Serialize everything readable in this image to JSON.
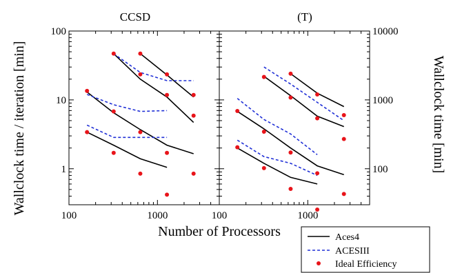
{
  "chart_data": [
    {
      "type": "line",
      "title": "CCSD",
      "xlabel": "Number of Processors",
      "ylabel": "Wallclock time / iteration [min]",
      "x_scale": "log",
      "y_scale": "log",
      "xlim": [
        100,
        5000
      ],
      "ylim": [
        0.3,
        100
      ],
      "x_ticks": [
        100,
        1000
      ],
      "x_tick_labels": [
        "100",
        "1000"
      ],
      "y_ticks": [
        1,
        10,
        100
      ],
      "y_tick_labels": [
        "1",
        "10",
        "100"
      ],
      "series": [
        {
          "name": "Aces4",
          "style": "solid",
          "color": "#000000",
          "x": [
            160,
            320,
            640,
            1280
          ],
          "y": [
            3.4,
            2.2,
            1.4,
            1.05
          ]
        },
        {
          "name": "Aces4",
          "style": "solid",
          "color": "#000000",
          "x": [
            160,
            320,
            640,
            1280,
            2560
          ],
          "y": [
            13,
            6.5,
            3.7,
            2.2,
            1.65
          ]
        },
        {
          "name": "Aces4",
          "style": "solid",
          "color": "#000000",
          "x": [
            320,
            640,
            1280,
            2560
          ],
          "y": [
            47,
            20,
            11,
            4.7
          ]
        },
        {
          "name": "Aces4",
          "style": "solid",
          "color": "#000000",
          "x": [
            640,
            1280,
            2560
          ],
          "y": [
            47,
            23,
            11
          ]
        },
        {
          "name": "ACESIII",
          "style": "dashed",
          "color": "#1f2fd6",
          "x": [
            160,
            320,
            640,
            1280
          ],
          "y": [
            4.3,
            2.85,
            2.85,
            2.85
          ]
        },
        {
          "name": "ACESIII",
          "style": "dashed",
          "color": "#1f2fd6",
          "x": [
            160,
            320,
            640,
            1280
          ],
          "y": [
            12,
            8.5,
            6.8,
            7.0
          ]
        },
        {
          "name": "ACESIII",
          "style": "dashed",
          "color": "#1f2fd6",
          "x": [
            320,
            640,
            1280,
            2560
          ],
          "y": [
            47,
            25,
            19,
            19
          ]
        },
        {
          "name": "Ideal Efficiency",
          "style": "markers",
          "color": "#e8141a",
          "x": [
            160,
            320,
            640,
            1280,
            160,
            320,
            640,
            1280,
            2560,
            320,
            640,
            1280,
            2560,
            640,
            1280,
            2560
          ],
          "y": [
            3.4,
            1.7,
            0.85,
            0.42,
            13.5,
            6.8,
            3.4,
            1.7,
            0.85,
            47,
            23.5,
            11.8,
            5.9,
            47,
            23.5,
            11.8
          ]
        }
      ]
    },
    {
      "type": "line",
      "title": "(T)",
      "xlabel": "Number of Processors",
      "ylabel": "Wallclock time [min]",
      "x_scale": "log",
      "y_scale": "log",
      "xlim": [
        100,
        5000
      ],
      "ylim": [
        30,
        10000
      ],
      "x_ticks": [
        100,
        1000
      ],
      "x_tick_labels": [
        "100",
        "1000"
      ],
      "y_ticks": [
        100,
        1000,
        10000
      ],
      "y_tick_labels": [
        "100",
        "1000",
        "10000"
      ],
      "series": [
        {
          "name": "Aces4",
          "style": "solid",
          "color": "#000000",
          "x": [
            160,
            320,
            640,
            1280
          ],
          "y": [
            200,
            120,
            75,
            60
          ]
        },
        {
          "name": "Aces4",
          "style": "solid",
          "color": "#000000",
          "x": [
            160,
            320,
            640,
            1280,
            2560
          ],
          "y": [
            680,
            380,
            200,
            110,
            82
          ]
        },
        {
          "name": "Aces4",
          "style": "solid",
          "color": "#000000",
          "x": [
            320,
            640,
            1280,
            2560
          ],
          "y": [
            2200,
            1150,
            580,
            410
          ]
        },
        {
          "name": "Aces4",
          "style": "solid",
          "color": "#000000",
          "x": [
            640,
            1280,
            2560
          ],
          "y": [
            2400,
            1250,
            800
          ]
        },
        {
          "name": "ACESIII",
          "style": "dashed",
          "color": "#1f2fd6",
          "x": [
            160,
            320,
            640,
            1280
          ],
          "y": [
            260,
            150,
            120,
            80
          ]
        },
        {
          "name": "ACESIII",
          "style": "dashed",
          "color": "#1f2fd6",
          "x": [
            160,
            320,
            640,
            1280
          ],
          "y": [
            1050,
            520,
            320,
            160
          ]
        },
        {
          "name": "ACESIII",
          "style": "dashed",
          "color": "#1f2fd6",
          "x": [
            320,
            640,
            1280,
            2560
          ],
          "y": [
            3000,
            1700,
            920,
            500
          ]
        },
        {
          "name": "Ideal Efficiency",
          "style": "markers",
          "color": "#e8141a",
          "x": [
            160,
            320,
            640,
            1280,
            160,
            320,
            640,
            1280,
            2560,
            320,
            640,
            1280,
            2560,
            640,
            1280,
            2560
          ],
          "y": [
            205,
            102,
            51,
            25.5,
            690,
            345,
            172,
            86,
            43,
            2150,
            1080,
            540,
            270,
            2400,
            1200,
            600
          ]
        }
      ]
    }
  ],
  "legend": {
    "placement": "bottom-right",
    "entries": [
      {
        "label": "Aces4",
        "style": "solid",
        "color": "#000000"
      },
      {
        "label": "ACESIII",
        "style": "dashed",
        "color": "#1f2fd6"
      },
      {
        "label": "Ideal Efficiency",
        "style": "markers",
        "color": "#e8141a"
      }
    ]
  }
}
